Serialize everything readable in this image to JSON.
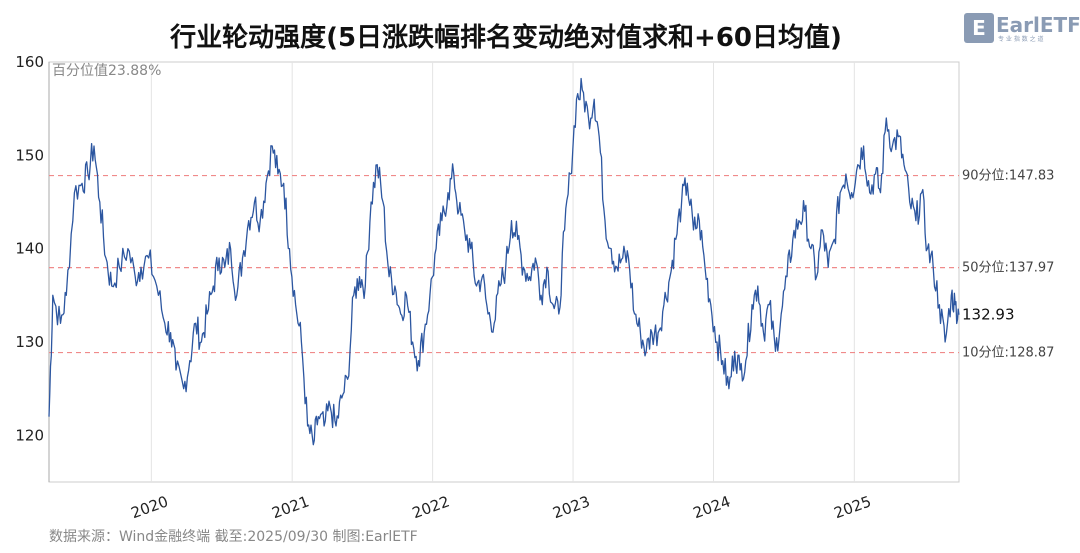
{
  "chart_data": {
    "type": "line",
    "title": "行业轮动强度(5日涨跌幅排名变动绝对值求和+60日均值)",
    "xlabel": "",
    "ylabel": "",
    "ylim": [
      115,
      160
    ],
    "yticks": [
      120,
      130,
      140,
      150,
      160
    ],
    "xrange": [
      "2019-04-10",
      "2025-09-30"
    ],
    "xticks": [
      {
        "label": "2020",
        "date": "2020-01-01"
      },
      {
        "label": "2021",
        "date": "2021-01-01"
      },
      {
        "label": "2022",
        "date": "2022-01-01"
      },
      {
        "label": "2023",
        "date": "2023-01-01"
      },
      {
        "label": "2024",
        "date": "2024-01-01"
      },
      {
        "label": "2025",
        "date": "2025-01-01"
      }
    ],
    "grid": "vertical",
    "series": [
      {
        "color": "#2c56a0",
        "points": [
          [
            "2019-04-10",
            122
          ],
          [
            "2019-04-20",
            135
          ],
          [
            "2019-05-10",
            132
          ],
          [
            "2019-05-25",
            135
          ],
          [
            "2019-06-15",
            146
          ],
          [
            "2019-07-05",
            147
          ],
          [
            "2019-07-20",
            148
          ],
          [
            "2019-08-05",
            151
          ],
          [
            "2019-08-20",
            145
          ],
          [
            "2019-09-05",
            139
          ],
          [
            "2019-09-20",
            136
          ],
          [
            "2019-10-10",
            138
          ],
          [
            "2019-11-01",
            140
          ],
          [
            "2019-11-20",
            137
          ],
          [
            "2019-12-05",
            138
          ],
          [
            "2019-12-25",
            139
          ],
          [
            "2020-01-15",
            136
          ],
          [
            "2020-02-05",
            132
          ],
          [
            "2020-02-20",
            131
          ],
          [
            "2020-03-05",
            127
          ],
          [
            "2020-03-25",
            125
          ],
          [
            "2020-04-10",
            128
          ],
          [
            "2020-04-25",
            132
          ],
          [
            "2020-05-10",
            130
          ],
          [
            "2020-05-25",
            133
          ],
          [
            "2020-06-10",
            136
          ],
          [
            "2020-06-25",
            139
          ],
          [
            "2020-07-10",
            138
          ],
          [
            "2020-07-25",
            140
          ],
          [
            "2020-08-10",
            135
          ],
          [
            "2020-08-25",
            139
          ],
          [
            "2020-09-10",
            143
          ],
          [
            "2020-09-25",
            145
          ],
          [
            "2020-10-10",
            143
          ],
          [
            "2020-10-25",
            147
          ],
          [
            "2020-11-10",
            151
          ],
          [
            "2020-11-25",
            148
          ],
          [
            "2020-12-10",
            147
          ],
          [
            "2020-12-25",
            140
          ],
          [
            "2021-01-10",
            134
          ],
          [
            "2021-01-25",
            130
          ],
          [
            "2021-02-10",
            121
          ],
          [
            "2021-02-25",
            119
          ],
          [
            "2021-03-10",
            122
          ],
          [
            "2021-03-25",
            121
          ],
          [
            "2021-04-10",
            123
          ],
          [
            "2021-04-25",
            121
          ],
          [
            "2021-05-10",
            124
          ],
          [
            "2021-05-25",
            126
          ],
          [
            "2021-06-10",
            135
          ],
          [
            "2021-06-25",
            137
          ],
          [
            "2021-07-10",
            136
          ],
          [
            "2021-07-25",
            145
          ],
          [
            "2021-08-10",
            149
          ],
          [
            "2021-08-25",
            145
          ],
          [
            "2021-09-10",
            137
          ],
          [
            "2021-09-25",
            136
          ],
          [
            "2021-10-10",
            133
          ],
          [
            "2021-10-25",
            135
          ],
          [
            "2021-11-10",
            130
          ],
          [
            "2021-11-25",
            128
          ],
          [
            "2021-12-10",
            131
          ],
          [
            "2021-12-25",
            135
          ],
          [
            "2022-01-10",
            140
          ],
          [
            "2022-01-25",
            143
          ],
          [
            "2022-02-10",
            146
          ],
          [
            "2022-02-25",
            148
          ],
          [
            "2022-03-10",
            144
          ],
          [
            "2022-03-25",
            142
          ],
          [
            "2022-04-10",
            140
          ],
          [
            "2022-04-25",
            136
          ],
          [
            "2022-05-10",
            137
          ],
          [
            "2022-05-25",
            133
          ],
          [
            "2022-06-10",
            132
          ],
          [
            "2022-06-25",
            136
          ],
          [
            "2022-07-10",
            138
          ],
          [
            "2022-07-25",
            143
          ],
          [
            "2022-08-10",
            141
          ],
          [
            "2022-08-25",
            138
          ],
          [
            "2022-09-10",
            137
          ],
          [
            "2022-09-25",
            139
          ],
          [
            "2022-10-10",
            135
          ],
          [
            "2022-10-25",
            138
          ],
          [
            "2022-11-10",
            134
          ],
          [
            "2022-11-25",
            133
          ],
          [
            "2022-12-10",
            142
          ],
          [
            "2022-12-25",
            148
          ],
          [
            "2023-01-10",
            156
          ],
          [
            "2023-01-25",
            157
          ],
          [
            "2023-02-10",
            154
          ],
          [
            "2023-02-25",
            156
          ],
          [
            "2023-03-10",
            152
          ],
          [
            "2023-03-25",
            143
          ],
          [
            "2023-04-10",
            140
          ],
          [
            "2023-04-25",
            138
          ],
          [
            "2023-05-10",
            139
          ],
          [
            "2023-05-25",
            139
          ],
          [
            "2023-06-10",
            133
          ],
          [
            "2023-06-25",
            131
          ],
          [
            "2023-07-10",
            129
          ],
          [
            "2023-07-25",
            131
          ],
          [
            "2023-08-10",
            131
          ],
          [
            "2023-08-25",
            134
          ],
          [
            "2023-09-10",
            137
          ],
          [
            "2023-09-25",
            141
          ],
          [
            "2023-10-10",
            145
          ],
          [
            "2023-10-25",
            147
          ],
          [
            "2023-11-10",
            142
          ],
          [
            "2023-11-25",
            143
          ],
          [
            "2023-12-10",
            138
          ],
          [
            "2023-12-25",
            134
          ],
          [
            "2024-01-10",
            130
          ],
          [
            "2024-01-25",
            128
          ],
          [
            "2024-02-10",
            125
          ],
          [
            "2024-02-25",
            129
          ],
          [
            "2024-03-10",
            127
          ],
          [
            "2024-03-25",
            128
          ],
          [
            "2024-04-10",
            134
          ],
          [
            "2024-04-25",
            136
          ],
          [
            "2024-05-10",
            131
          ],
          [
            "2024-05-25",
            134
          ],
          [
            "2024-06-10",
            129
          ],
          [
            "2024-06-25",
            133
          ],
          [
            "2024-07-10",
            137
          ],
          [
            "2024-07-25",
            141
          ],
          [
            "2024-08-10",
            143
          ],
          [
            "2024-08-25",
            144
          ],
          [
            "2024-09-10",
            140
          ],
          [
            "2024-09-25",
            137
          ],
          [
            "2024-10-10",
            142
          ],
          [
            "2024-10-25",
            138
          ],
          [
            "2024-11-10",
            141
          ],
          [
            "2024-11-25",
            146
          ],
          [
            "2024-12-10",
            148
          ],
          [
            "2024-12-25",
            146
          ],
          [
            "2025-01-10",
            149
          ],
          [
            "2025-01-25",
            151
          ],
          [
            "2025-02-10",
            146
          ],
          [
            "2025-02-25",
            148
          ],
          [
            "2025-03-10",
            146
          ],
          [
            "2025-03-25",
            154
          ],
          [
            "2025-04-10",
            151
          ],
          [
            "2025-04-25",
            152
          ],
          [
            "2025-05-10",
            149
          ],
          [
            "2025-05-25",
            145
          ],
          [
            "2025-06-10",
            143
          ],
          [
            "2025-06-25",
            146
          ],
          [
            "2025-07-10",
            140
          ],
          [
            "2025-07-25",
            138
          ],
          [
            "2025-08-10",
            134
          ],
          [
            "2025-08-25",
            130
          ],
          [
            "2025-09-10",
            135
          ],
          [
            "2025-09-20",
            134
          ],
          [
            "2025-09-30",
            132.93
          ]
        ]
      }
    ],
    "reference_lines": [
      {
        "value": 147.83,
        "label": "90分位:147.83",
        "color": "#f08a8a"
      },
      {
        "value": 137.97,
        "label": "50分位:137.97",
        "color": "#f08a8a"
      },
      {
        "value": 128.87,
        "label": "10分位:128.87",
        "color": "#f08a8a"
      }
    ],
    "last_value": "132.93",
    "percentile_note": "百分位值23.88%"
  },
  "footer": {
    "source": "数据来源：Wind金融终端 截至:2025/09/30 制图:EarlETF"
  },
  "logo": {
    "text": "EarlETF",
    "sub": "专 业 指 数 之 道"
  }
}
